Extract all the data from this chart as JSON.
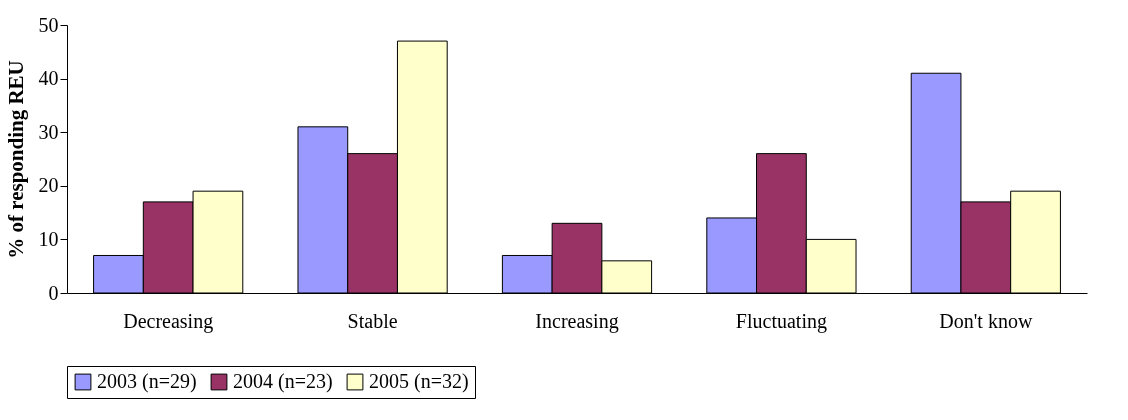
{
  "chart_data": {
    "type": "bar",
    "ylabel": "% of responding REU",
    "categories": [
      "Decreasing",
      "Stable",
      "Increasing",
      "Fluctuating",
      "Don't know"
    ],
    "series": [
      {
        "name": "2003 (n=29)",
        "color": "#9999ff",
        "values": [
          7,
          31,
          7,
          14,
          41
        ]
      },
      {
        "name": "2004 (n=23)",
        "color": "#993366",
        "values": [
          17,
          26,
          13,
          26,
          17
        ]
      },
      {
        "name": "2005 (n=32)",
        "color": "#ffffcc",
        "values": [
          19,
          47,
          6,
          10,
          19
        ]
      }
    ],
    "ylim": [
      0,
      50
    ],
    "yticks": [
      0,
      10,
      20,
      30,
      40,
      50
    ],
    "grid": false,
    "legend": "bottom"
  }
}
